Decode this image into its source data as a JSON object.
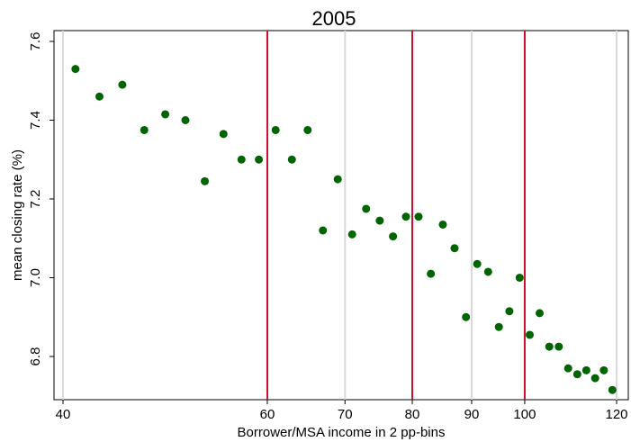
{
  "chart_data": {
    "type": "scatter",
    "title": "2005",
    "xlabel": "Borrower/MSA income in 2 pp-bins",
    "ylabel": "mean  closing rate (%)",
    "xlim": [
      40,
      120
    ],
    "ylim": [
      6.72,
      7.6
    ],
    "x_ticks": [
      40,
      60,
      70,
      80,
      90,
      100,
      120
    ],
    "x_tick_labels": [
      "40",
      "60",
      "70",
      "80",
      "90",
      "100",
      "120"
    ],
    "y_ticks": [
      6.8,
      7.0,
      7.2,
      7.4,
      7.6
    ],
    "y_tick_labels": [
      "6.8",
      "7.0",
      "7.2",
      "7.4",
      "7.6"
    ],
    "grid": "vertical gridlines at x ticks",
    "reference_lines_x": [
      60,
      80,
      100
    ],
    "colors": {
      "marker": "#006400",
      "reference_line": "#c8102e",
      "grid": "#d9d9d9",
      "frame": "#000000"
    },
    "series": [
      {
        "points": [
          {
            "x": 41,
            "y": 7.53
          },
          {
            "x": 43,
            "y": 7.46
          },
          {
            "x": 45,
            "y": 7.49
          },
          {
            "x": 47,
            "y": 7.375
          },
          {
            "x": 49,
            "y": 7.415
          },
          {
            "x": 51,
            "y": 7.4
          },
          {
            "x": 53,
            "y": 7.245
          },
          {
            "x": 55,
            "y": 7.365
          },
          {
            "x": 57,
            "y": 7.3
          },
          {
            "x": 59,
            "y": 7.3
          },
          {
            "x": 61,
            "y": 7.375
          },
          {
            "x": 63,
            "y": 7.3
          },
          {
            "x": 65,
            "y": 7.375
          },
          {
            "x": 67,
            "y": 7.12
          },
          {
            "x": 69,
            "y": 7.25
          },
          {
            "x": 71,
            "y": 7.11
          },
          {
            "x": 73,
            "y": 7.175
          },
          {
            "x": 75,
            "y": 7.145
          },
          {
            "x": 77,
            "y": 7.105
          },
          {
            "x": 79,
            "y": 7.155
          },
          {
            "x": 81,
            "y": 7.155
          },
          {
            "x": 83,
            "y": 7.01
          },
          {
            "x": 85,
            "y": 7.135
          },
          {
            "x": 87,
            "y": 7.075
          },
          {
            "x": 89,
            "y": 6.9
          },
          {
            "x": 91,
            "y": 7.035
          },
          {
            "x": 93,
            "y": 7.015
          },
          {
            "x": 95,
            "y": 6.875
          },
          {
            "x": 97,
            "y": 6.915
          },
          {
            "x": 99,
            "y": 7.0
          },
          {
            "x": 101,
            "y": 6.855
          },
          {
            "x": 103,
            "y": 6.91
          },
          {
            "x": 105,
            "y": 6.825
          },
          {
            "x": 107,
            "y": 6.825
          },
          {
            "x": 109,
            "y": 6.77
          },
          {
            "x": 111,
            "y": 6.755
          },
          {
            "x": 113,
            "y": 6.765
          },
          {
            "x": 115,
            "y": 6.745
          },
          {
            "x": 117,
            "y": 6.765
          },
          {
            "x": 119,
            "y": 6.715
          }
        ]
      }
    ]
  }
}
